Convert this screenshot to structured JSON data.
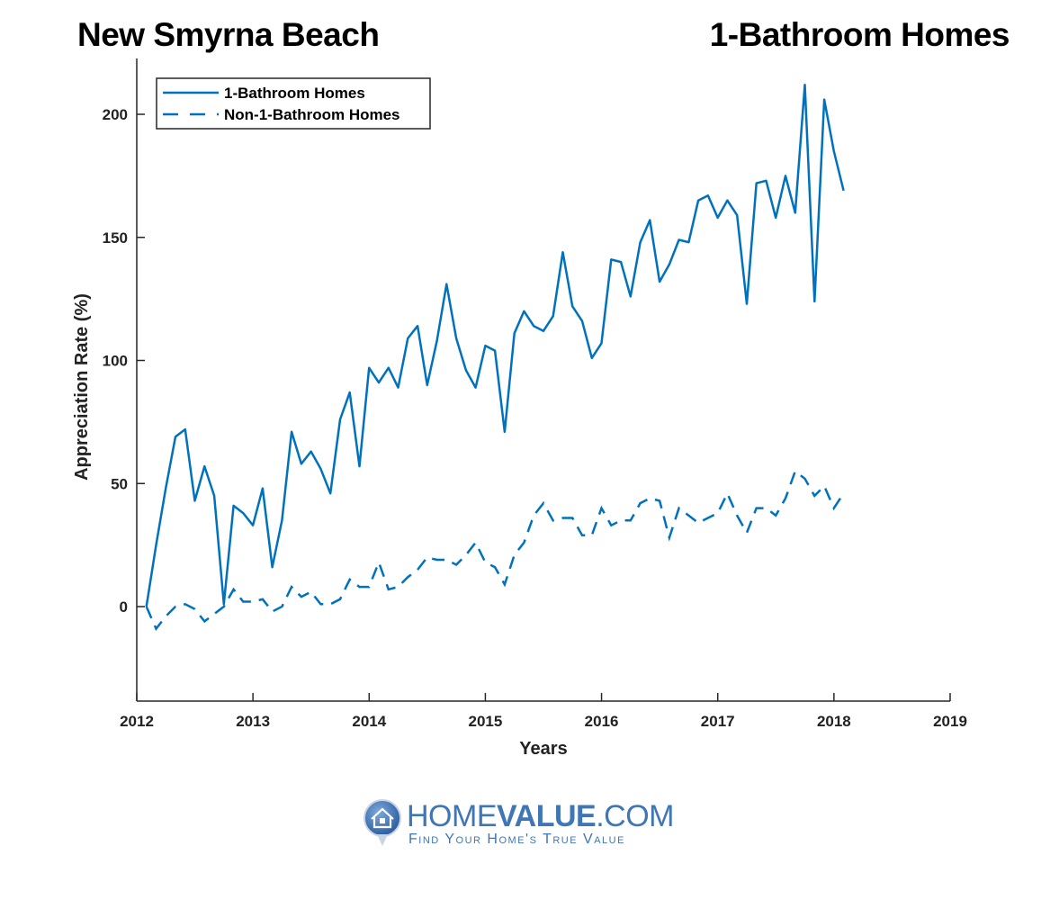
{
  "header": {
    "location": "New Smyrna Beach",
    "chart_name": "1-Bathroom Homes"
  },
  "legend": {
    "items": [
      {
        "label": "1-Bathroom Homes",
        "style": "solid"
      },
      {
        "label": "Non-1-Bathroom Homes",
        "style": "dashed"
      }
    ]
  },
  "axes": {
    "xlabel": "Years",
    "ylabel": "Appreciation Rate (%)",
    "xticks": [
      "2012",
      "2013",
      "2014",
      "2015",
      "2016",
      "2017",
      "2018",
      "2019"
    ],
    "yticks": [
      "0",
      "50",
      "100",
      "150",
      "200"
    ]
  },
  "colors": {
    "series": "#0072bd",
    "axis": "#262626",
    "logo": "#3f76b6"
  },
  "footer": {
    "logo_main_a": "HOME",
    "logo_main_b": "VALUE",
    "logo_main_c": ".COM",
    "logo_tagline": "Find Your Home's True Value"
  },
  "chart_data": {
    "type": "line",
    "title": "New Smyrna Beach — 1-Bathroom Homes",
    "xlabel": "Years",
    "ylabel": "Appreciation Rate (%)",
    "xlim": [
      2012,
      2019
    ],
    "ylim": [
      -38,
      222
    ],
    "grid": false,
    "legend_position": "upper left",
    "x_start": 2012.083,
    "x_step_months": 1,
    "series": [
      {
        "name": "1-Bathroom Homes",
        "style": "solid",
        "values": [
          0,
          25,
          48,
          69,
          72,
          43,
          57,
          45,
          1,
          41,
          38,
          33,
          48,
          16,
          35,
          71,
          58,
          63,
          56,
          46,
          76,
          87,
          57,
          97,
          91,
          97,
          89,
          109,
          114,
          90,
          108,
          131,
          109,
          96,
          89,
          106,
          104,
          71,
          111,
          120,
          114,
          112,
          118,
          144,
          122,
          116,
          101,
          107,
          141,
          140,
          126,
          148,
          157,
          132,
          139,
          149,
          148,
          165,
          167,
          158,
          165,
          159,
          123,
          172,
          173,
          158,
          175,
          160,
          212,
          124,
          206,
          185,
          169
        ]
      },
      {
        "name": "Non-1-Bathroom Homes",
        "style": "dashed",
        "values": [
          0,
          -9,
          -4,
          0,
          1,
          -1,
          -6,
          -3,
          0,
          7,
          2,
          2,
          3,
          -2,
          0,
          8,
          4,
          6,
          1,
          1,
          3,
          11,
          8,
          8,
          18,
          7,
          8,
          12,
          15,
          20,
          19,
          19,
          17,
          21,
          26,
          18,
          16,
          9,
          21,
          26,
          37,
          42,
          35,
          36,
          36,
          29,
          29,
          40,
          33,
          35,
          35,
          42,
          44,
          43,
          28,
          40,
          37,
          34,
          36,
          38,
          46,
          37,
          30,
          40,
          40,
          37,
          44,
          55,
          52,
          45,
          49,
          40,
          46
        ]
      }
    ]
  }
}
